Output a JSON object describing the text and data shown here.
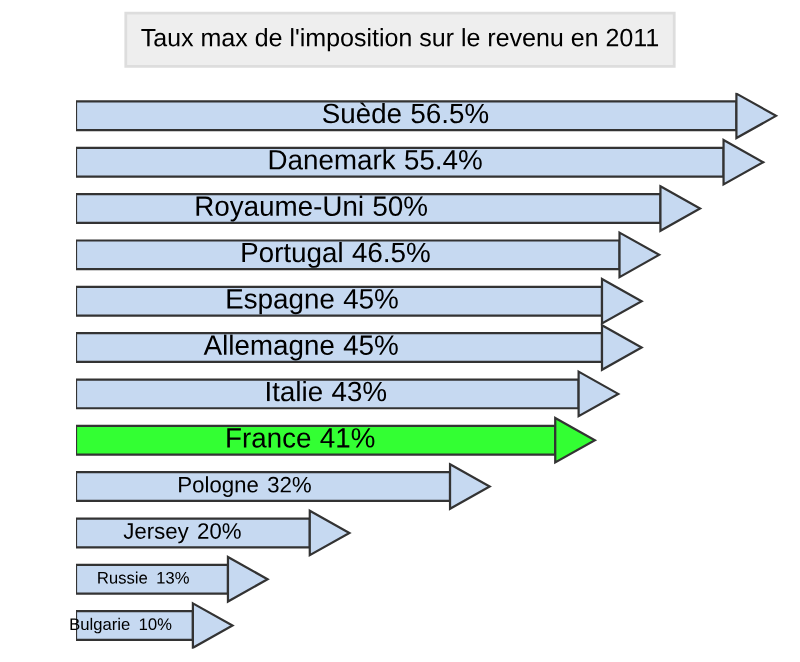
{
  "chart_data": {
    "type": "bar",
    "orientation": "horizontal",
    "title": "Taux max de l'imposition sur le revenu en 2011",
    "categories": [
      "Suède",
      "Danemark",
      "Royaume-Uni",
      "Portugal",
      "Espagne",
      "Allemagne",
      "Italie",
      "France",
      "Pologne",
      "Jersey",
      "Russie",
      "Bulgarie"
    ],
    "values": [
      56.5,
      55.4,
      50,
      46.5,
      45,
      45,
      43,
      41,
      32,
      20,
      13,
      10
    ],
    "value_labels": [
      "56.5%",
      "55.4%",
      "50%",
      "46.5%",
      "45%",
      "45%",
      "43%",
      "41%",
      "32%",
      "20%",
      "13%",
      "10%"
    ],
    "colors": [
      "#c6d9f1",
      "#c6d9f1",
      "#c6d9f1",
      "#c6d9f1",
      "#c6d9f1",
      "#c6d9f1",
      "#c6d9f1",
      "#33ff33",
      "#c6d9f1",
      "#c6d9f1",
      "#c6d9f1",
      "#c6d9f1"
    ],
    "legend": false
  }
}
